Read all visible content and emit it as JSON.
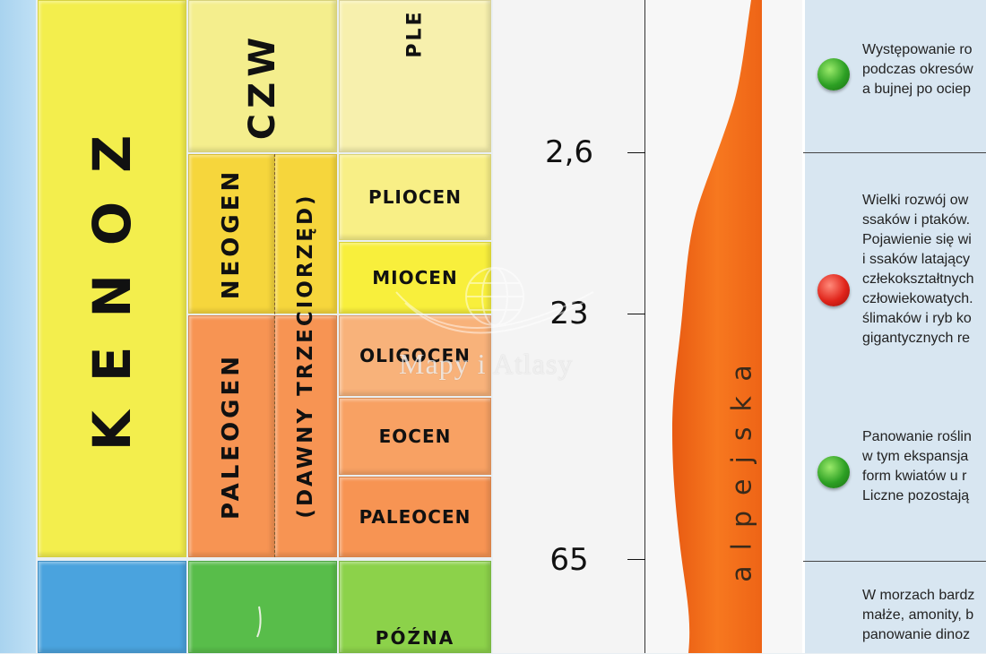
{
  "eras": {
    "kenozoik": "KENOZ"
  },
  "periods": {
    "czwartorzed": "CZW",
    "neogen": "NEOGEN",
    "paleogen": "PALEOGEN",
    "dawny": "(DAWNY TRZECIORZĘD)"
  },
  "epochs": {
    "plejstocen": "PLE",
    "pliocen": "PLIOCEN",
    "miocen": "MIOCEN",
    "oligocen": "OLIGOCEN",
    "eocen": "EOCEN",
    "paleocen": "PALEOCEN",
    "pozna": "PÓŹNA"
  },
  "time_labels": [
    "2,6",
    "23",
    "65"
  ],
  "orogeny": "alpejska",
  "info": [
    {
      "indicator": "green",
      "lines": [
        "Występowanie ro",
        "podczas okresów",
        "a bujnej po ociep"
      ]
    },
    {
      "indicator": "red",
      "lines": [
        "Wielki rozwój ow",
        "ssaków i ptaków.",
        "Pojawienie się wi",
        "i ssaków latający",
        "człekokształtnych",
        "człowiekowatych.",
        "ślimaków i ryb ko",
        "gigantycznych re"
      ]
    },
    {
      "indicator": "green",
      "lines": [
        "Panowanie roślin",
        "w tym ekspansja",
        "form kwiatów u r",
        "Liczne pozostają"
      ]
    },
    {
      "indicator": "none",
      "lines": [
        "W morzach bardz",
        "małże, amonity, b",
        "panowanie dinoz"
      ]
    }
  ],
  "watermark": "Mapy i Atlasy",
  "colors": {
    "kenozoik": "#f3ee4d",
    "neogen": "#f6d63c",
    "paleogen": "#f79453",
    "orogeny": "#f46a1e",
    "info_bg": "#d8e6f1"
  }
}
